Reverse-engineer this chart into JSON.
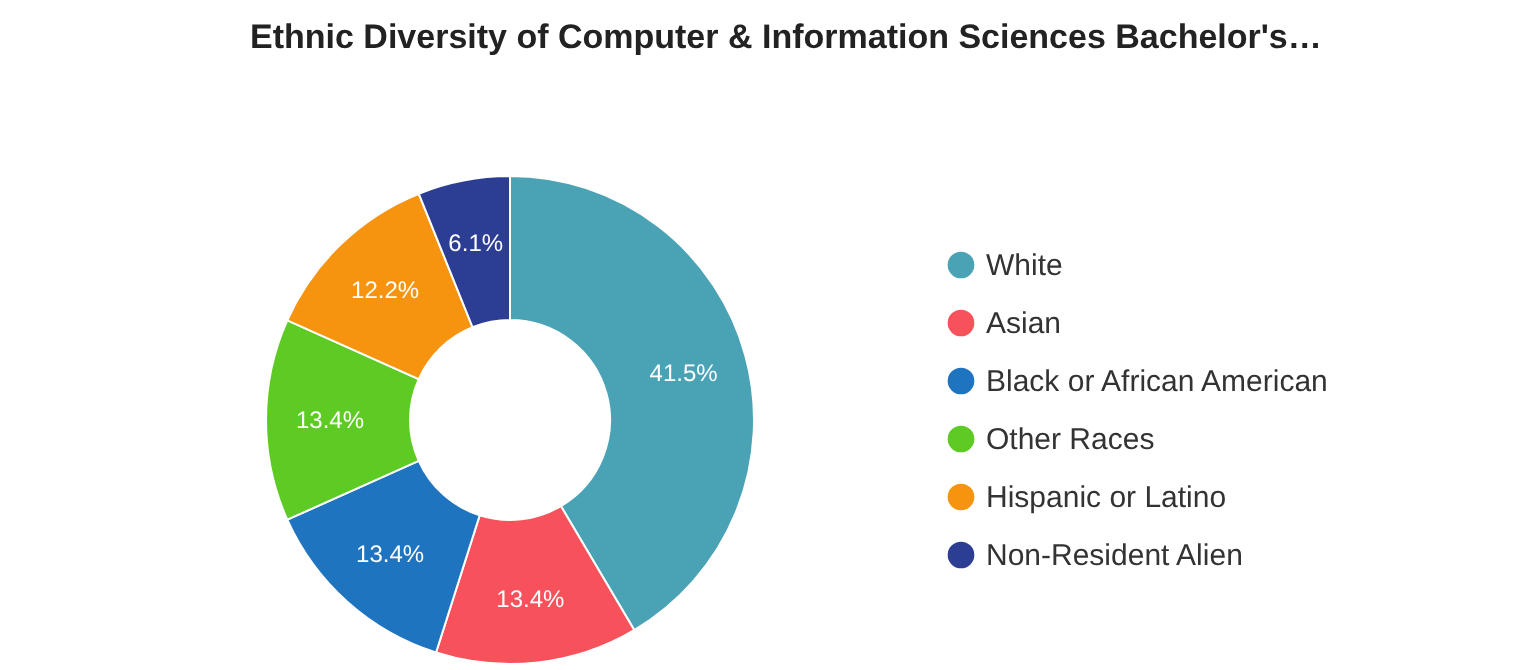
{
  "chart_data": {
    "type": "donut",
    "title": "Ethnic Diversity of Computer & Information Sciences Bachelor's…",
    "categories": [
      "White",
      "Asian",
      "Black or African American",
      "Other Races",
      "Hispanic or Latino",
      "Non-Resident Alien"
    ],
    "values": [
      41.5,
      13.4,
      13.4,
      13.4,
      12.2,
      6.1
    ],
    "value_labels": [
      "41.5%",
      "13.4%",
      "13.4%",
      "13.4%",
      "12.2%",
      "6.1%"
    ],
    "colors": [
      "#4aa3b5",
      "#f7525b",
      "#1f74c0",
      "#5ecb25",
      "#f7940f",
      "#2c3e94"
    ],
    "legend": "right"
  }
}
